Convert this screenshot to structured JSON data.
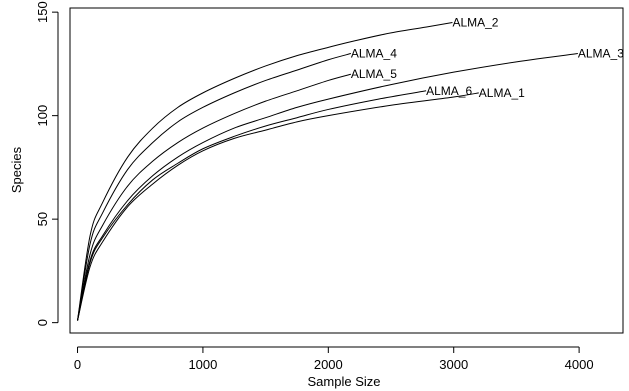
{
  "chart_data": {
    "type": "line",
    "title": "",
    "xlabel": "Sample Size",
    "ylabel": "Species",
    "xlim": [
      -60,
      4350
    ],
    "ylim": [
      -5,
      152
    ],
    "x_ticks": [
      0,
      1000,
      2000,
      3000,
      4000
    ],
    "y_ticks": [
      0,
      50,
      100,
      150
    ],
    "grid": false,
    "legend": "none (series labelled at curve ends)",
    "series": [
      {
        "name": "ALMA_2",
        "x": [
          0,
          100,
          200,
          400,
          600,
          800,
          1000,
          1250,
          1500,
          1750,
          2000,
          2200,
          2500,
          2800,
          2990
        ],
        "y": [
          1,
          42,
          58,
          80,
          94,
          104,
          111,
          118,
          124,
          129,
          133,
          136,
          140,
          143,
          145
        ]
      },
      {
        "name": "ALMA_4",
        "x": [
          0,
          100,
          200,
          400,
          600,
          800,
          1000,
          1250,
          1500,
          1750,
          2000,
          2180
        ],
        "y": [
          1,
          38,
          53,
          74,
          87,
          97,
          104,
          111,
          117,
          122,
          127,
          130
        ]
      },
      {
        "name": "ALMA_5",
        "x": [
          0,
          100,
          200,
          400,
          600,
          800,
          1000,
          1250,
          1500,
          1750,
          2000,
          2180
        ],
        "y": [
          1,
          33,
          47,
          66,
          78,
          87,
          94,
          101,
          107,
          112,
          117,
          120
        ]
      },
      {
        "name": "ALMA_3",
        "x": [
          0,
          100,
          200,
          400,
          600,
          800,
          1000,
          1250,
          1500,
          1750,
          2000,
          2500,
          3000,
          3500,
          3990
        ],
        "y": [
          1,
          30,
          42,
          59,
          71,
          80,
          87,
          94,
          99,
          104,
          108,
          115,
          121,
          126,
          130
        ]
      },
      {
        "name": "ALMA_6",
        "x": [
          0,
          100,
          200,
          400,
          600,
          800,
          1000,
          1250,
          1500,
          1750,
          2000,
          2400,
          2780
        ],
        "y": [
          1,
          29,
          41,
          57,
          69,
          77,
          84,
          90,
          95,
          99,
          103,
          108,
          112
        ]
      },
      {
        "name": "ALMA_1",
        "x": [
          0,
          100,
          200,
          400,
          600,
          800,
          1000,
          1250,
          1500,
          1750,
          2000,
          2500,
          3000,
          3200
        ],
        "y": [
          1,
          27,
          39,
          56,
          67,
          76,
          83,
          89,
          93,
          97,
          100,
          105,
          109,
          111
        ]
      }
    ]
  }
}
